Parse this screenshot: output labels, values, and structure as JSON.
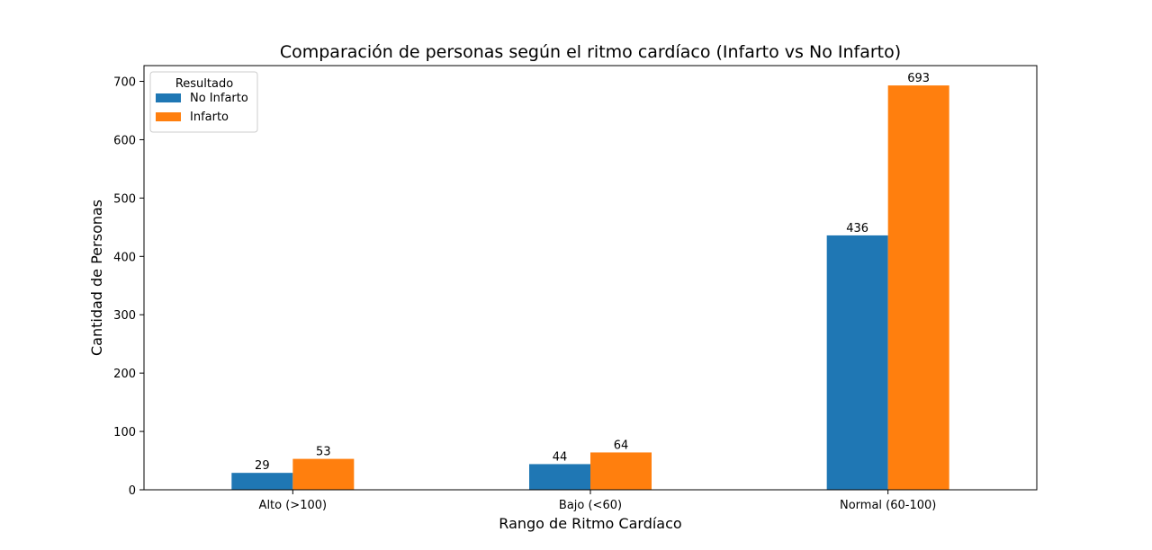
{
  "chart_data": {
    "type": "bar",
    "title": "Comparación de personas según el ritmo cardíaco (Infarto vs No Infarto)",
    "xlabel": "Rango de Ritmo Cardíaco",
    "ylabel": "Cantidad de Personas",
    "categories": [
      "Alto (>100)",
      "Bajo (<60)",
      "Normal (60-100)"
    ],
    "series": [
      {
        "name": "No Infarto",
        "values": [
          29,
          44,
          436
        ],
        "color": "#1f77b4"
      },
      {
        "name": "Infarto",
        "values": [
          53,
          64,
          693
        ],
        "color": "#ff7f0e"
      }
    ],
    "ylim": [
      0,
      727
    ],
    "yticks": [
      0,
      100,
      200,
      300,
      400,
      500,
      600,
      700
    ],
    "legend": {
      "title": "Resultado",
      "position": "top-left"
    },
    "grid": false
  }
}
